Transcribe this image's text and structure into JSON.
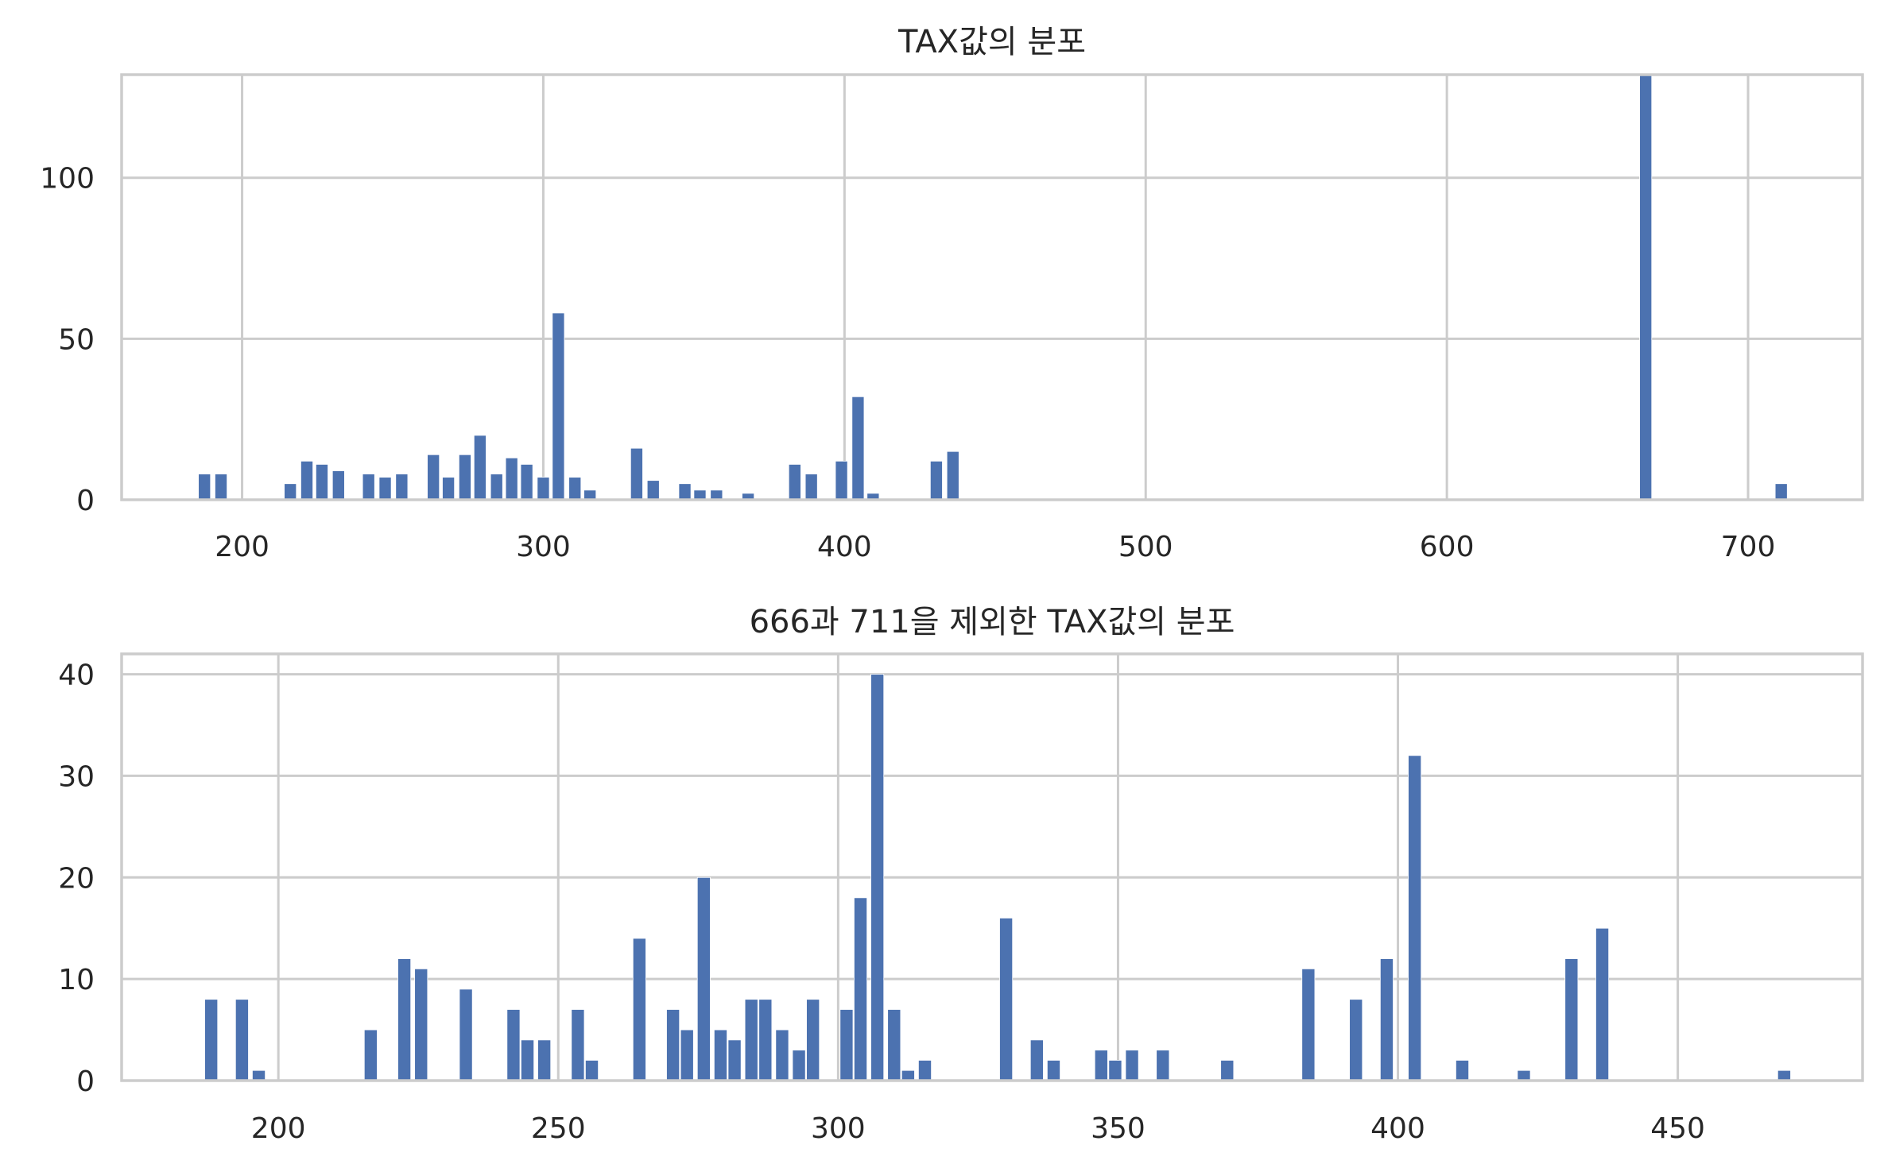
{
  "colors": {
    "bar": "#4c72b0",
    "grid": "#cccccc",
    "text": "#262626",
    "background": "#ffffff"
  },
  "chart_data": [
    {
      "type": "bar",
      "title": "TAX값의 분포",
      "xlabel": "",
      "ylabel": "",
      "xlim": [
        160,
        738
      ],
      "ylim": [
        0,
        132
      ],
      "x_ticks": [
        200,
        300,
        400,
        500,
        600,
        700
      ],
      "y_ticks": [
        0,
        50,
        100
      ],
      "grid": true,
      "bar_width": 4,
      "bars": [
        {
          "x": 187.5,
          "y": 8
        },
        {
          "x": 193.0,
          "y": 8
        },
        {
          "x": 216.0,
          "y": 5
        },
        {
          "x": 221.5,
          "y": 12
        },
        {
          "x": 226.5,
          "y": 11
        },
        {
          "x": 232.0,
          "y": 9
        },
        {
          "x": 242.0,
          "y": 8
        },
        {
          "x": 247.5,
          "y": 7
        },
        {
          "x": 253.0,
          "y": 8
        },
        {
          "x": 263.5,
          "y": 14
        },
        {
          "x": 268.5,
          "y": 7
        },
        {
          "x": 274.0,
          "y": 14
        },
        {
          "x": 279.0,
          "y": 20
        },
        {
          "x": 284.5,
          "y": 8
        },
        {
          "x": 289.5,
          "y": 13
        },
        {
          "x": 294.5,
          "y": 11
        },
        {
          "x": 300.0,
          "y": 7
        },
        {
          "x": 305.0,
          "y": 58
        },
        {
          "x": 310.5,
          "y": 7
        },
        {
          "x": 315.5,
          "y": 3
        },
        {
          "x": 331.0,
          "y": 16
        },
        {
          "x": 336.5,
          "y": 6
        },
        {
          "x": 347.0,
          "y": 5
        },
        {
          "x": 352.0,
          "y": 3
        },
        {
          "x": 357.5,
          "y": 3
        },
        {
          "x": 368.0,
          "y": 2
        },
        {
          "x": 383.5,
          "y": 11
        },
        {
          "x": 389.0,
          "y": 8
        },
        {
          "x": 399.0,
          "y": 12
        },
        {
          "x": 404.5,
          "y": 32
        },
        {
          "x": 409.5,
          "y": 2
        },
        {
          "x": 430.5,
          "y": 12
        },
        {
          "x": 436.0,
          "y": 15
        },
        {
          "x": 666.0,
          "y": 132
        },
        {
          "x": 711.0,
          "y": 5
        }
      ]
    },
    {
      "type": "bar",
      "title": "666과 711을 제외한 TAX값의 분포",
      "xlabel": "",
      "ylabel": "",
      "xlim": [
        172,
        483
      ],
      "ylim": [
        0,
        42
      ],
      "x_ticks": [
        200,
        250,
        300,
        350,
        400,
        450
      ],
      "y_ticks": [
        0,
        10,
        20,
        30,
        40
      ],
      "grid": true,
      "bar_width": 2.3,
      "bars": [
        {
          "x": 188.0,
          "y": 8
        },
        {
          "x": 193.5,
          "y": 8
        },
        {
          "x": 196.5,
          "y": 1
        },
        {
          "x": 216.5,
          "y": 5
        },
        {
          "x": 222.5,
          "y": 12
        },
        {
          "x": 225.5,
          "y": 11
        },
        {
          "x": 233.5,
          "y": 9
        },
        {
          "x": 242.0,
          "y": 7
        },
        {
          "x": 244.5,
          "y": 4
        },
        {
          "x": 247.5,
          "y": 4
        },
        {
          "x": 253.5,
          "y": 7
        },
        {
          "x": 256.0,
          "y": 2
        },
        {
          "x": 264.5,
          "y": 14
        },
        {
          "x": 270.5,
          "y": 7
        },
        {
          "x": 273.0,
          "y": 5
        },
        {
          "x": 276.0,
          "y": 20
        },
        {
          "x": 279.0,
          "y": 5
        },
        {
          "x": 281.5,
          "y": 4
        },
        {
          "x": 284.5,
          "y": 8
        },
        {
          "x": 287.0,
          "y": 8
        },
        {
          "x": 290.0,
          "y": 5
        },
        {
          "x": 293.0,
          "y": 3
        },
        {
          "x": 295.5,
          "y": 8
        },
        {
          "x": 301.5,
          "y": 7
        },
        {
          "x": 304.0,
          "y": 18
        },
        {
          "x": 307.0,
          "y": 40
        },
        {
          "x": 310.0,
          "y": 7
        },
        {
          "x": 312.5,
          "y": 1
        },
        {
          "x": 315.5,
          "y": 2
        },
        {
          "x": 330.0,
          "y": 16
        },
        {
          "x": 335.5,
          "y": 4
        },
        {
          "x": 338.5,
          "y": 2
        },
        {
          "x": 347.0,
          "y": 3
        },
        {
          "x": 349.5,
          "y": 2
        },
        {
          "x": 352.5,
          "y": 3
        },
        {
          "x": 358.0,
          "y": 3
        },
        {
          "x": 369.5,
          "y": 2
        },
        {
          "x": 384.0,
          "y": 11
        },
        {
          "x": 392.5,
          "y": 8
        },
        {
          "x": 398.0,
          "y": 12
        },
        {
          "x": 403.0,
          "y": 32
        },
        {
          "x": 411.5,
          "y": 2
        },
        {
          "x": 422.5,
          "y": 1
        },
        {
          "x": 431.0,
          "y": 12
        },
        {
          "x": 436.5,
          "y": 15
        },
        {
          "x": 469.0,
          "y": 1
        }
      ]
    }
  ]
}
